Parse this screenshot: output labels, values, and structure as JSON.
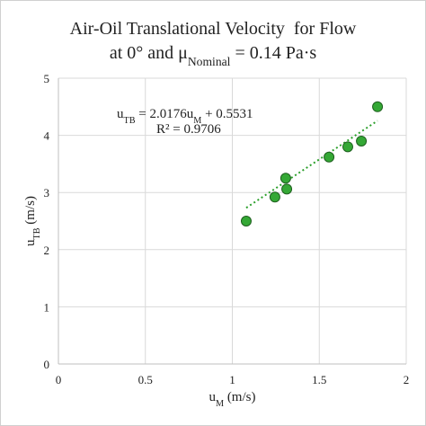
{
  "chart_data": {
    "type": "scatter",
    "title": [
      [
        "Air-Oil Translational Velocity  for Flow"
      ],
      [
        "at 0° and μ",
        "Nominal",
        " = 0.14 Pa·s"
      ]
    ],
    "x_label": [
      "u",
      "M",
      " (m/s)"
    ],
    "y_label": [
      "u",
      "TB",
      " (m/s)"
    ],
    "series": [
      {
        "color": "#34a835",
        "x": [
          1.08,
          1.245,
          1.307,
          1.313,
          1.556,
          1.664,
          1.742,
          1.835
        ],
        "values": [
          2.5,
          2.92,
          3.25,
          3.06,
          3.62,
          3.8,
          3.9,
          4.5
        ]
      }
    ],
    "trendline": {
      "slope": 2.0176,
      "intercept": 0.5531,
      "color": "#2ca02c",
      "equation": [
        [
          "u",
          "TB",
          " = 2.0176u",
          "M",
          " + 0.5531"
        ],
        [
          "R² = 0.9706"
        ]
      ]
    },
    "xlim": [
      0,
      2
    ],
    "xticks": [
      0,
      0.5,
      1,
      1.5,
      2
    ],
    "ylim": [
      0,
      5
    ],
    "yticks": [
      0,
      1,
      2,
      3,
      4,
      5
    ],
    "grid": true
  }
}
